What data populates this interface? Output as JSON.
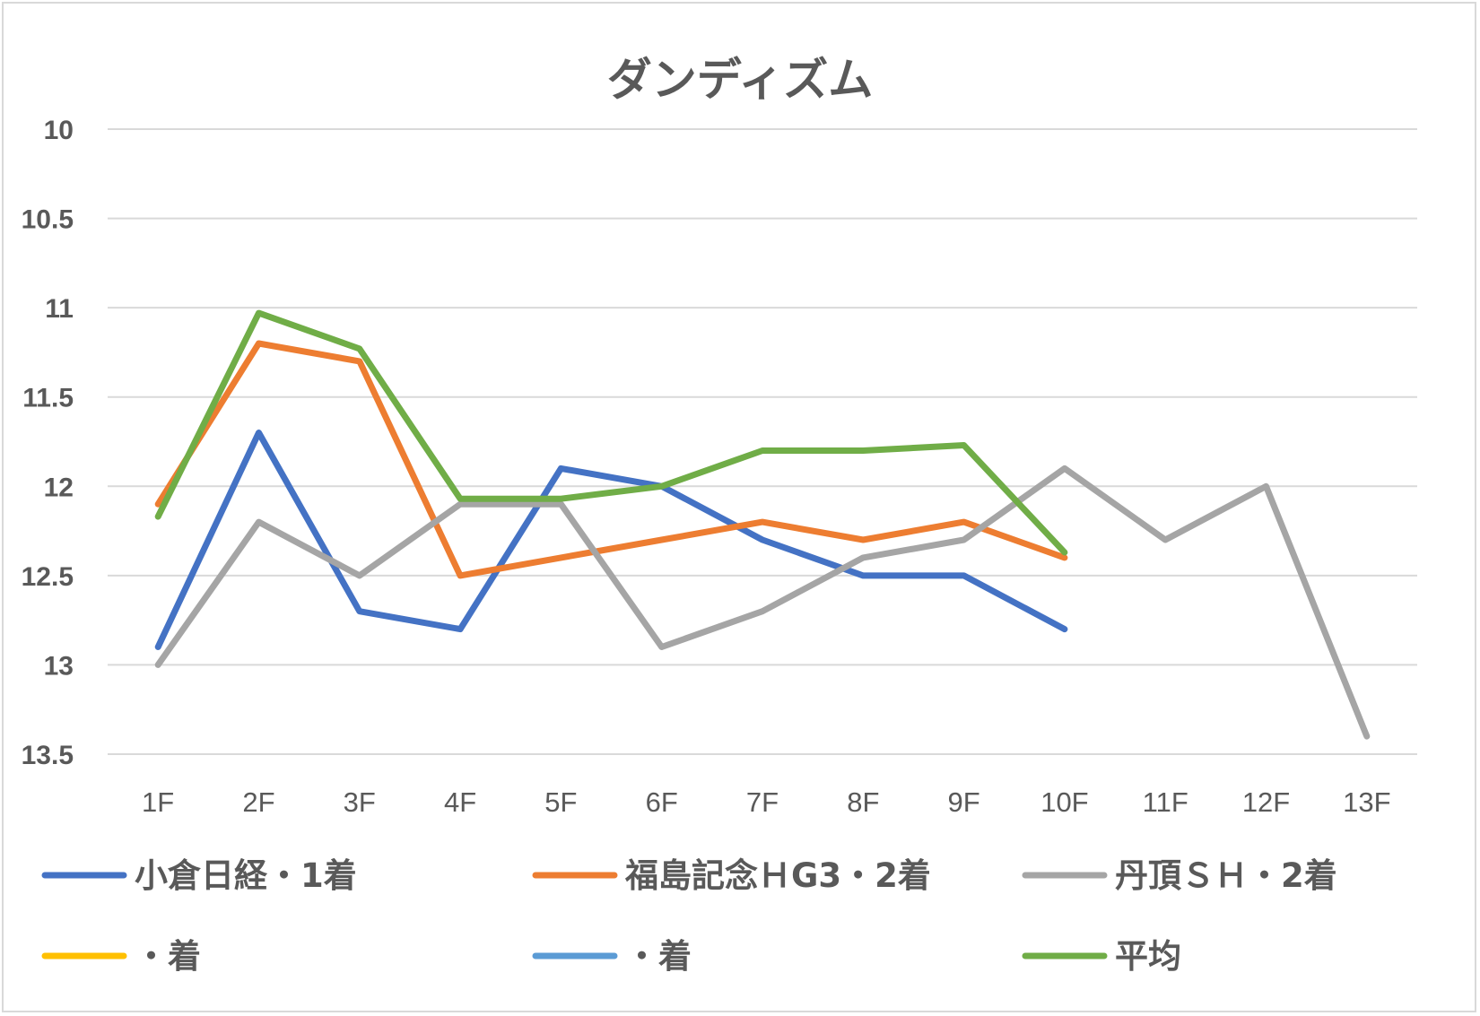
{
  "chart_data": {
    "type": "line",
    "title": "ダンディズム",
    "xlabel": "",
    "ylabel": "",
    "categories": [
      "1F",
      "2F",
      "3F",
      "4F",
      "5F",
      "6F",
      "7F",
      "8F",
      "9F",
      "10F",
      "11F",
      "12F",
      "13F"
    ],
    "ylim": [
      10,
      13.5
    ],
    "y_inverted": true,
    "yticks": [
      "10",
      "10.5",
      "11",
      "11.5",
      "12",
      "12.5",
      "13",
      "13.5"
    ],
    "grid": true,
    "legend_position": "bottom",
    "series": [
      {
        "name": "小倉日経・1着",
        "color": "#4472c4",
        "values": [
          12.9,
          11.7,
          12.7,
          12.8,
          11.9,
          12.0,
          12.3,
          12.5,
          12.5,
          12.8,
          null,
          null,
          null
        ]
      },
      {
        "name": "福島記念ＨG3・2着",
        "color": "#ed7d31",
        "values": [
          12.1,
          11.2,
          11.3,
          12.5,
          12.4,
          12.3,
          12.2,
          12.3,
          12.2,
          12.4,
          null,
          null,
          null
        ]
      },
      {
        "name": "丹頂ＳＨ・2着",
        "color": "#a5a5a5",
        "values": [
          13.0,
          12.2,
          12.5,
          12.1,
          12.1,
          12.9,
          12.7,
          12.4,
          12.3,
          11.9,
          12.3,
          12.0,
          13.4
        ]
      },
      {
        "name": "・着",
        "color": "#ffc000",
        "values": [
          null,
          null,
          null,
          null,
          null,
          null,
          null,
          null,
          null,
          null,
          null,
          null,
          null
        ]
      },
      {
        "name": "・着",
        "color": "#5b9bd5",
        "values": [
          null,
          null,
          null,
          null,
          null,
          null,
          null,
          null,
          null,
          null,
          null,
          null,
          null
        ]
      },
      {
        "name": "平均",
        "color": "#70ad47",
        "values": [
          12.17,
          11.03,
          11.23,
          12.07,
          12.07,
          12.0,
          11.8,
          11.8,
          11.77,
          12.37,
          null,
          null,
          null
        ]
      }
    ]
  }
}
